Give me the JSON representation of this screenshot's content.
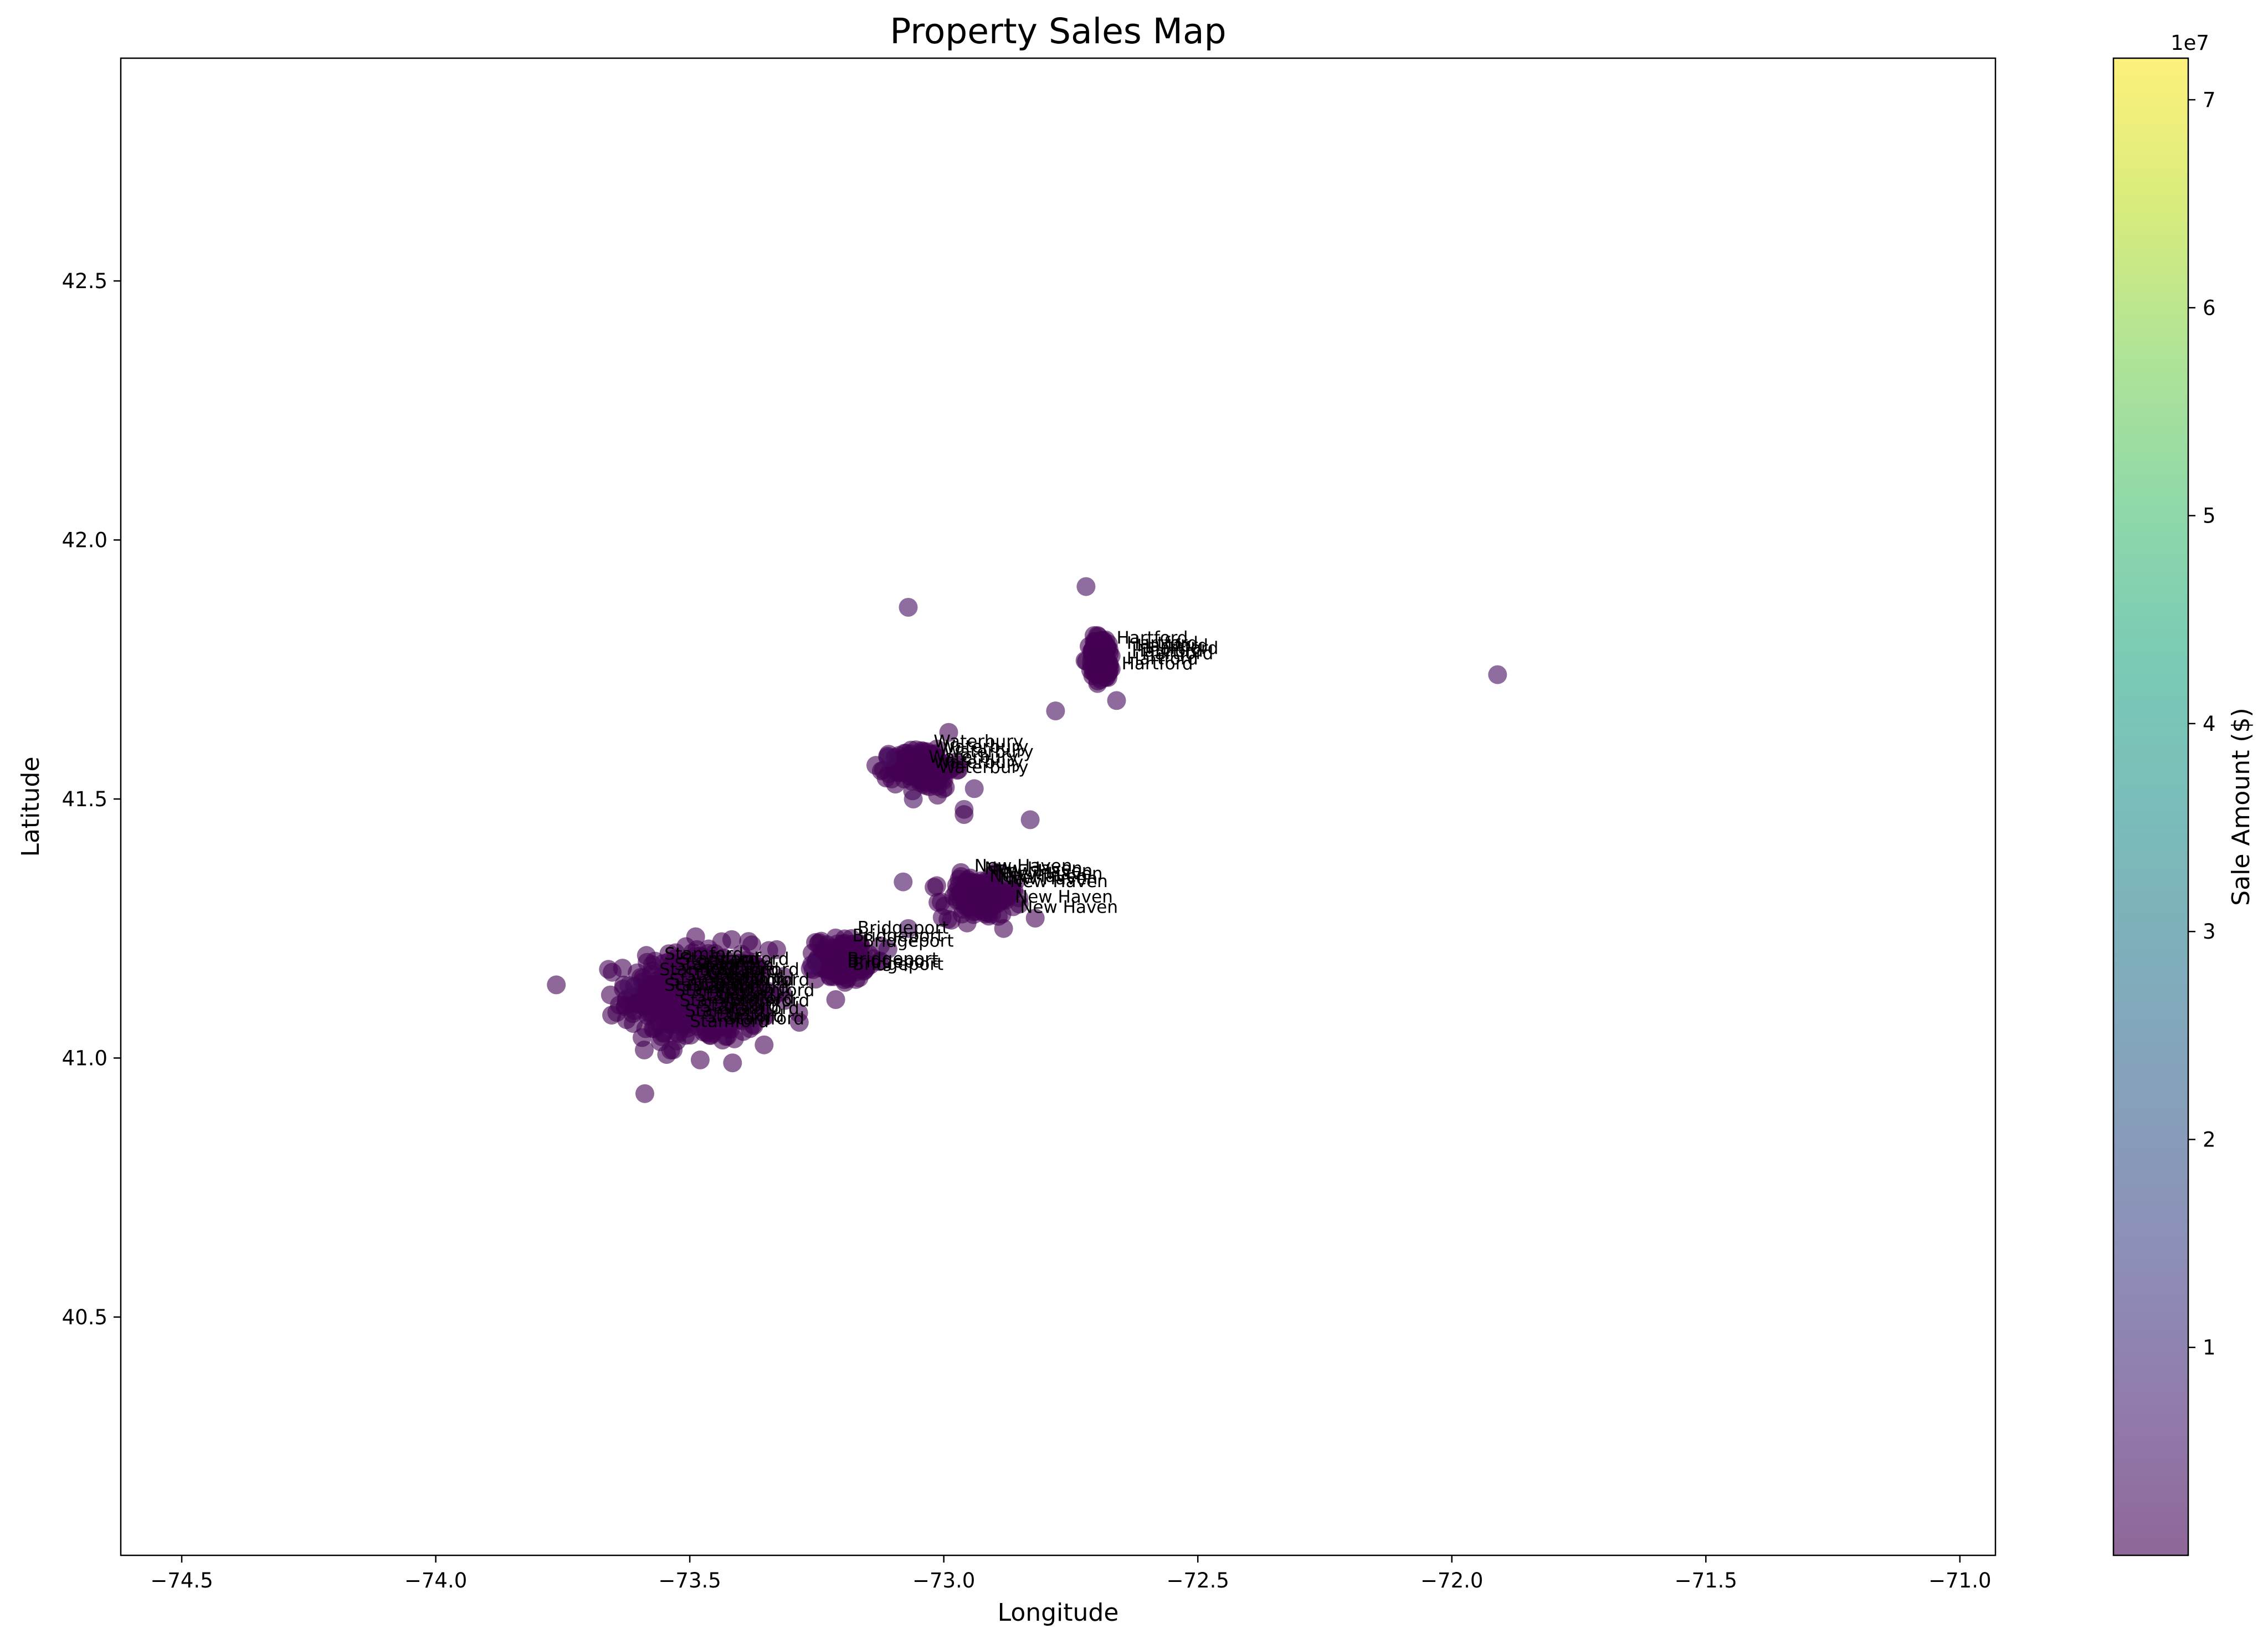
{
  "chart_data": {
    "type": "scatter",
    "title": "Property Sales Map",
    "xlabel": "Longitude",
    "ylabel": "Latitude",
    "xlim": [
      -74.62,
      -70.93
    ],
    "ylim": [
      40.04,
      42.93
    ],
    "xticks": [
      -74.5,
      -74.0,
      -73.5,
      -73.0,
      -72.5,
      -72.0,
      -71.5,
      -71.0
    ],
    "xtick_labels": [
      "−74.5",
      "−74.0",
      "−73.5",
      "−73.0",
      "−72.5",
      "−72.0",
      "−71.5",
      "−71.0"
    ],
    "yticks": [
      40.5,
      41.0,
      41.5,
      42.0,
      42.5
    ],
    "ytick_labels": [
      "40.5",
      "41.0",
      "41.5",
      "42.0",
      "42.5"
    ],
    "grid": false,
    "legend": "none",
    "colorbar": {
      "label": "Sale Amount ($)",
      "colormap": "viridis",
      "alpha": 0.6,
      "range": [
        0,
        72000000
      ],
      "offset_text": "1e7",
      "ticks": [
        1,
        2,
        3,
        4,
        5,
        6,
        7
      ],
      "tick_labels": [
        "1",
        "2",
        "3",
        "4",
        "5",
        "6",
        "7"
      ]
    },
    "colors": {
      "low": "#440154",
      "point_alpha": 0.6
    },
    "clusters": [
      {
        "city": "Stamford",
        "center": [
          -73.48,
          41.12
        ],
        "spread": [
          0.07,
          0.045
        ],
        "count": 520
      },
      {
        "city": "Bridgeport",
        "center": [
          -73.2,
          41.19
        ],
        "spread": [
          0.025,
          0.02
        ],
        "count": 150
      },
      {
        "city": "New Haven",
        "center": [
          -72.93,
          41.31
        ],
        "spread": [
          0.035,
          0.02
        ],
        "count": 170
      },
      {
        "city": "Waterbury",
        "center": [
          -73.04,
          41.56
        ],
        "spread": [
          0.03,
          0.02
        ],
        "count": 170
      },
      {
        "city": "Hartford",
        "center": [
          -72.69,
          41.77
        ],
        "spread": [
          0.012,
          0.022
        ],
        "count": 140
      }
    ],
    "outliers": [
      {
        "x": -72.72,
        "y": 41.91,
        "value": 2000000
      },
      {
        "x": -73.07,
        "y": 41.87,
        "value": 2000000
      },
      {
        "x": -71.91,
        "y": 41.74,
        "value": 2500000
      },
      {
        "x": -72.78,
        "y": 41.67,
        "value": 2000000
      },
      {
        "x": -72.66,
        "y": 41.69,
        "value": 1500000
      },
      {
        "x": -73.11,
        "y": 41.58,
        "value": 2000000
      },
      {
        "x": -72.94,
        "y": 41.52,
        "value": 2500000
      },
      {
        "x": -73.06,
        "y": 41.5,
        "value": 2000000
      },
      {
        "x": -72.96,
        "y": 41.48,
        "value": 2000000
      },
      {
        "x": -72.96,
        "y": 41.47,
        "value": 0
      },
      {
        "x": -72.83,
        "y": 41.46,
        "value": 2000000
      },
      {
        "x": -73.08,
        "y": 41.34,
        "value": 2500000
      },
      {
        "x": -72.82,
        "y": 41.27,
        "value": 0
      },
      {
        "x": -73.07,
        "y": 41.25,
        "value": 2000000
      },
      {
        "x": -73.26,
        "y": 41.18,
        "value": 2000000
      },
      {
        "x": -73.62,
        "y": 41.14,
        "value": 2000000
      },
      {
        "x": -73.11,
        "y": 41.21,
        "value": 1500000
      }
    ],
    "annotations": [
      {
        "text": "Waterbury",
        "x": -73.02,
        "y": 41.6
      },
      {
        "text": "Waterbury",
        "x": -73.01,
        "y": 41.59
      },
      {
        "text": "Waterbury",
        "x": -73.0,
        "y": 41.58
      },
      {
        "text": "Waterbury",
        "x": -73.03,
        "y": 41.57
      },
      {
        "text": "Waterbury",
        "x": -73.02,
        "y": 41.56
      },
      {
        "text": "Waterbury",
        "x": -73.01,
        "y": 41.55
      },
      {
        "text": "Hartford",
        "x": -72.66,
        "y": 41.8
      },
      {
        "text": "Hartford",
        "x": -72.64,
        "y": 41.79
      },
      {
        "text": "Hartford",
        "x": -72.62,
        "y": 41.785
      },
      {
        "text": "Hartford",
        "x": -72.6,
        "y": 41.78
      },
      {
        "text": "Hartford",
        "x": -72.63,
        "y": 41.775
      },
      {
        "text": "Hartford",
        "x": -72.61,
        "y": 41.77
      },
      {
        "text": "Hartford",
        "x": -72.64,
        "y": 41.76
      },
      {
        "text": "Hartford",
        "x": -72.65,
        "y": 41.75
      },
      {
        "text": "New Haven",
        "x": -72.94,
        "y": 41.36
      },
      {
        "text": "New Haven",
        "x": -72.92,
        "y": 41.355
      },
      {
        "text": "New Haven",
        "x": -72.9,
        "y": 41.35
      },
      {
        "text": "New Haven",
        "x": -72.88,
        "y": 41.345
      },
      {
        "text": "New Haven",
        "x": -72.91,
        "y": 41.34
      },
      {
        "text": "New Haven",
        "x": -72.89,
        "y": 41.335
      },
      {
        "text": "New Haven",
        "x": -72.87,
        "y": 41.33
      },
      {
        "text": "New Haven",
        "x": -72.86,
        "y": 41.3
      },
      {
        "text": "New Haven",
        "x": -72.85,
        "y": 41.28
      },
      {
        "text": "Bridgeport",
        "x": -73.17,
        "y": 41.24
      },
      {
        "text": "Bridgeport",
        "x": -73.18,
        "y": 41.225
      },
      {
        "text": "Bridgeport",
        "x": -73.16,
        "y": 41.215
      },
      {
        "text": "Bridgeport",
        "x": -73.19,
        "y": 41.18
      },
      {
        "text": "Bridgeport",
        "x": -73.18,
        "y": 41.17
      },
      {
        "text": "Bridgeport",
        "x": -73.19,
        "y": 41.175
      },
      {
        "text": "Stamford",
        "x": -73.55,
        "y": 41.19
      },
      {
        "text": "Stamford",
        "x": -73.52,
        "y": 41.18
      },
      {
        "text": "Stamford",
        "x": -73.49,
        "y": 41.17
      },
      {
        "text": "Stamford",
        "x": -73.56,
        "y": 41.16
      },
      {
        "text": "Stamford",
        "x": -73.51,
        "y": 41.15
      },
      {
        "text": "Stamford",
        "x": -73.47,
        "y": 41.145
      },
      {
        "text": "Stamford",
        "x": -73.54,
        "y": 41.14
      },
      {
        "text": "Stamford",
        "x": -73.5,
        "y": 41.13
      },
      {
        "text": "Stamford",
        "x": -73.46,
        "y": 41.125
      },
      {
        "text": "Stamford",
        "x": -73.53,
        "y": 41.12
      },
      {
        "text": "Stamford",
        "x": -73.49,
        "y": 41.11
      },
      {
        "text": "Stamford",
        "x": -73.45,
        "y": 41.105
      },
      {
        "text": "Stamford",
        "x": -73.52,
        "y": 41.1
      },
      {
        "text": "Stamford",
        "x": -73.48,
        "y": 41.09
      },
      {
        "text": "Stamford",
        "x": -73.44,
        "y": 41.085
      },
      {
        "text": "Stamford",
        "x": -73.51,
        "y": 41.08
      },
      {
        "text": "Stamford",
        "x": -73.47,
        "y": 41.07
      },
      {
        "text": "Stamford",
        "x": -73.43,
        "y": 41.065
      },
      {
        "text": "Stamford",
        "x": -73.5,
        "y": 41.06
      },
      {
        "text": "Stamford",
        "x": -73.46,
        "y": 41.18
      },
      {
        "text": "Stamford",
        "x": -73.44,
        "y": 41.16
      },
      {
        "text": "Stamford",
        "x": -73.42,
        "y": 41.14
      },
      {
        "text": "Stamford",
        "x": -73.41,
        "y": 41.12
      },
      {
        "text": "Stamford",
        "x": -73.42,
        "y": 41.1
      },
      {
        "text": "Stamford",
        "x": -73.55,
        "y": 41.13
      },
      {
        "text": "Stamford",
        "x": -73.53,
        "y": 41.17
      },
      {
        "text": "Stamford",
        "x": -73.48,
        "y": 41.16
      },
      {
        "text": "Stamford",
        "x": -73.45,
        "y": 41.14
      }
    ]
  }
}
